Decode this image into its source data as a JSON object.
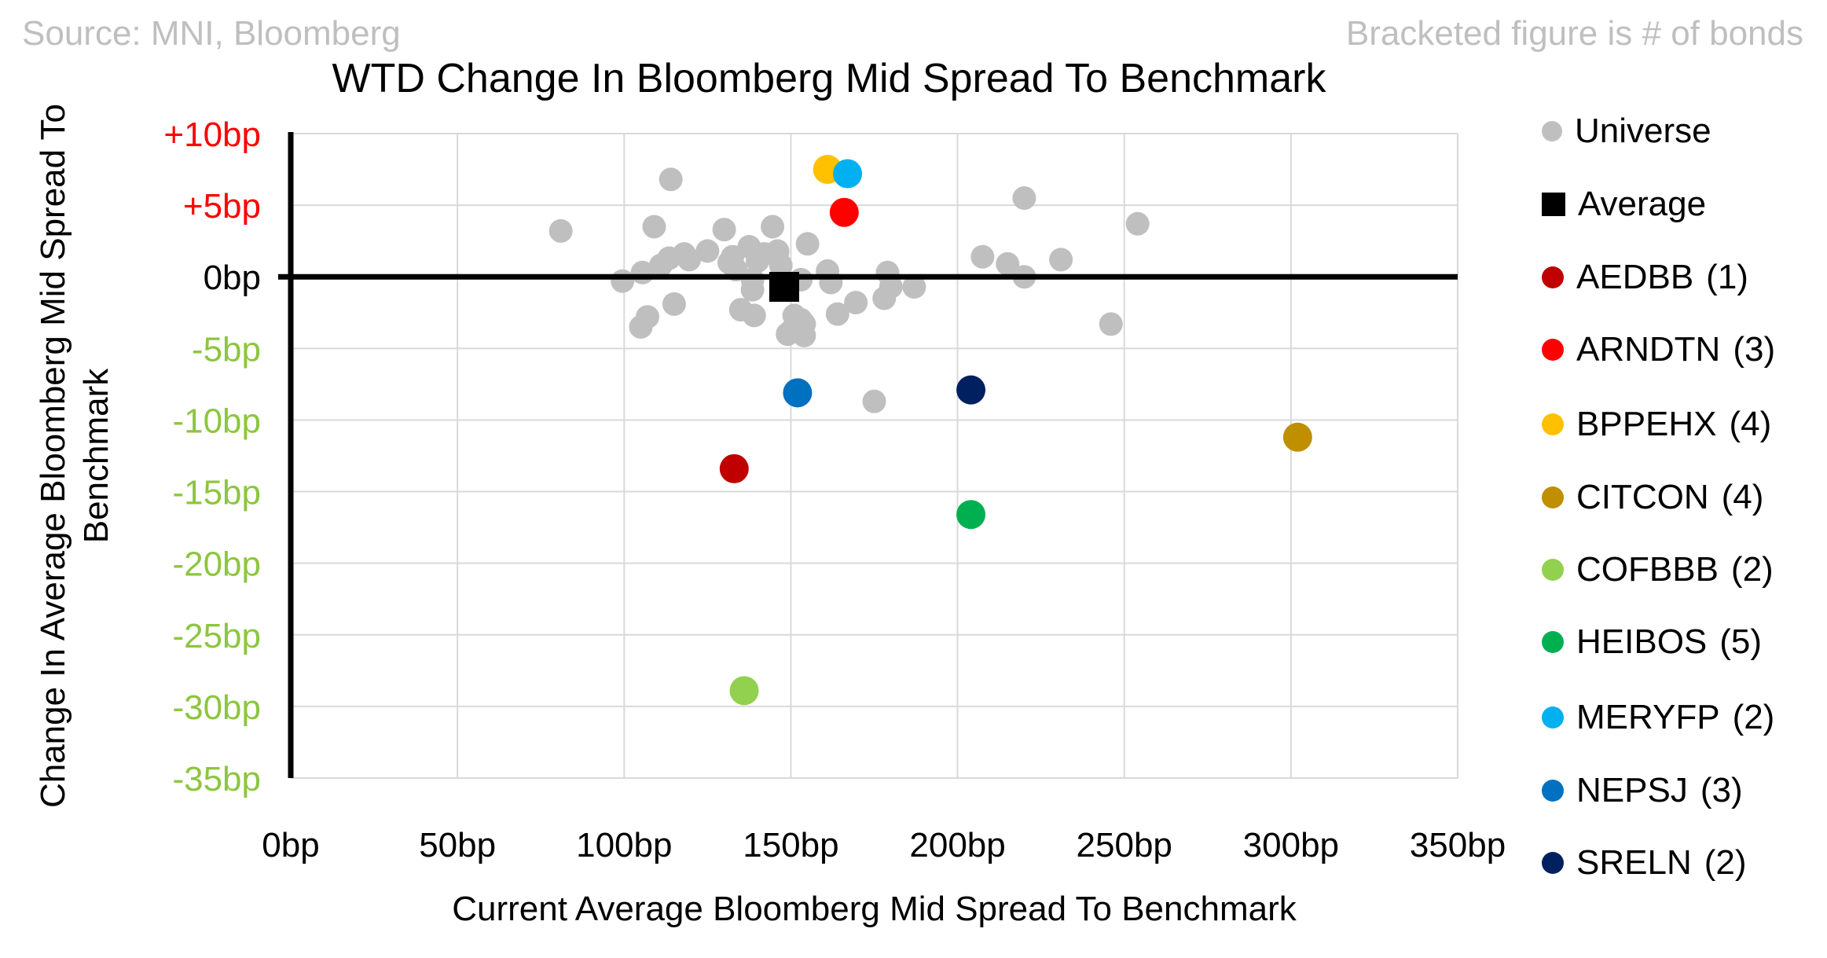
{
  "header": {
    "source": "Source: MNI, Bloomberg",
    "note": "Bracketed figure is # of bonds"
  },
  "chart_data": {
    "type": "scatter",
    "title": "WTD Change In Bloomberg Mid Spread To Benchmark",
    "xlabel": "Current Average Bloomberg Mid Spread To Benchmark",
    "ylabel_line1": "Change In Average Bloomberg Mid Spread To",
    "ylabel_line2": "Benchmark",
    "unit": "bp",
    "grid": true,
    "gridline_color": "#D9D9D9",
    "zero_line_color": "#000000",
    "x_axis": {
      "min": 0,
      "max": 350,
      "step": 50,
      "ticks": [
        {
          "value": 0,
          "label": "0bp"
        },
        {
          "value": 50,
          "label": "50bp"
        },
        {
          "value": 100,
          "label": "100bp"
        },
        {
          "value": 150,
          "label": "150bp"
        },
        {
          "value": 200,
          "label": "200bp"
        },
        {
          "value": 250,
          "label": "250bp"
        },
        {
          "value": 300,
          "label": "300bp"
        },
        {
          "value": 350,
          "label": "350bp"
        }
      ]
    },
    "y_axis": {
      "min": -35,
      "max": 10,
      "step": 5,
      "ticks": [
        {
          "value": 10,
          "label": "+10bp",
          "color": "#FF0000"
        },
        {
          "value": 5,
          "label": "+5bp",
          "color": "#FF0000"
        },
        {
          "value": 0,
          "label": "0bp",
          "color": "#000000"
        },
        {
          "value": -5,
          "label": "-5bp",
          "color": "#8CC63E"
        },
        {
          "value": -10,
          "label": "-10bp",
          "color": "#8CC63E"
        },
        {
          "value": -15,
          "label": "-15bp",
          "color": "#8CC63E"
        },
        {
          "value": -20,
          "label": "-20bp",
          "color": "#8CC63E"
        },
        {
          "value": -25,
          "label": "-25bp",
          "color": "#8CC63E"
        },
        {
          "value": -30,
          "label": "-30bp",
          "color": "#8CC63E"
        },
        {
          "value": -35,
          "label": "-35bp",
          "color": "#8CC63E"
        }
      ]
    },
    "series": [
      {
        "name": "Universe",
        "marker": "circle",
        "color": "#BFBFBF",
        "size": 30,
        "points": [
          [
            81,
            3.2
          ],
          [
            114,
            6.8
          ],
          [
            109,
            3.5
          ],
          [
            130,
            3.3
          ],
          [
            144.5,
            3.5
          ],
          [
            125,
            1.8
          ],
          [
            113.5,
            1.3
          ],
          [
            118,
            1.6
          ],
          [
            119.5,
            1.2
          ],
          [
            111,
            0.8
          ],
          [
            105.5,
            0.3
          ],
          [
            99.5,
            -0.3
          ],
          [
            132.5,
            1.4
          ],
          [
            131.5,
            1.0
          ],
          [
            133.5,
            0.5
          ],
          [
            137.5,
            2.1
          ],
          [
            140,
            1.1
          ],
          [
            142,
            1.6
          ],
          [
            146,
            1.8
          ],
          [
            147,
            0.8
          ],
          [
            138.5,
            -0.2
          ],
          [
            138.5,
            -0.9
          ],
          [
            115,
            -1.9
          ],
          [
            135,
            -2.3
          ],
          [
            139,
            -2.7
          ],
          [
            107,
            -2.8
          ],
          [
            105,
            -3.5
          ],
          [
            151,
            -2.7
          ],
          [
            150,
            -3.8
          ],
          [
            153,
            -0.2
          ],
          [
            155,
            2.3
          ],
          [
            146,
            1.7
          ],
          [
            161,
            0.4
          ],
          [
            162,
            -0.4
          ],
          [
            164,
            -2.6
          ],
          [
            169.5,
            -1.8
          ],
          [
            178,
            -1.5
          ],
          [
            180,
            -0.7
          ],
          [
            187,
            -0.7
          ],
          [
            179,
            0.3
          ],
          [
            153,
            -3.0
          ],
          [
            154,
            -3.3
          ],
          [
            154,
            -4.1
          ],
          [
            149,
            -4.0
          ],
          [
            175,
            -8.7
          ],
          [
            220,
            5.5
          ],
          [
            254,
            3.7
          ],
          [
            207.5,
            1.4
          ],
          [
            215,
            0.9
          ],
          [
            220,
            0.0
          ],
          [
            231,
            1.2
          ],
          [
            246,
            -3.3
          ]
        ]
      },
      {
        "name": "AEDBB",
        "count": "(1)",
        "marker": "circle",
        "color": "#C00000",
        "size": 37,
        "points": [
          [
            133,
            -13.4
          ]
        ]
      },
      {
        "name": "ARNDTN",
        "count": "(3)",
        "marker": "circle",
        "color": "#FF0000",
        "size": 37,
        "points": [
          [
            166,
            4.5
          ]
        ]
      },
      {
        "name": "BPPEHX",
        "count": "(4)",
        "marker": "circle",
        "color": "#FFC000",
        "size": 37,
        "points": [
          [
            161,
            7.5
          ]
        ]
      },
      {
        "name": "CITCON",
        "count": "(4)",
        "marker": "circle",
        "color": "#BF8F00",
        "size": 37,
        "points": [
          [
            302,
            -11.2
          ]
        ]
      },
      {
        "name": "COFBBB",
        "count": "(2)",
        "marker": "circle",
        "color": "#92D050",
        "size": 37,
        "points": [
          [
            136,
            -28.9
          ]
        ]
      },
      {
        "name": "HEIBOS",
        "count": "(5)",
        "marker": "circle",
        "color": "#00B050",
        "size": 37,
        "points": [
          [
            204,
            -16.6
          ]
        ]
      },
      {
        "name": "MERYFP",
        "count": "(2)",
        "marker": "circle",
        "color": "#00B0F0",
        "size": 37,
        "points": [
          [
            167,
            7.2
          ]
        ]
      },
      {
        "name": "NEPSJ",
        "count": "(3)",
        "marker": "circle",
        "color": "#0070C0",
        "size": 37,
        "points": [
          [
            152,
            -8.1
          ]
        ]
      },
      {
        "name": "SRELN",
        "count": "(2)",
        "marker": "circle",
        "color": "#002060",
        "size": 37,
        "points": [
          [
            204,
            -7.9
          ]
        ]
      },
      {
        "name": "Average",
        "marker": "square",
        "color": "#000000",
        "size": 38,
        "points": [
          [
            148,
            -0.7
          ]
        ]
      }
    ],
    "legend": {
      "position": "right",
      "items": [
        {
          "name": "Universe",
          "count": "",
          "marker": "circle",
          "color": "#BFBFBF",
          "size": 26
        },
        {
          "name": "Average",
          "count": "",
          "marker": "square",
          "color": "#000000",
          "size": 30
        },
        {
          "name": "AEDBB",
          "count": "(1)",
          "marker": "circle",
          "color": "#C00000",
          "size": 28
        },
        {
          "name": "ARNDTN",
          "count": "(3)",
          "marker": "circle",
          "color": "#FF0000",
          "size": 28
        },
        {
          "name": "BPPEHX",
          "count": "(4)",
          "marker": "circle",
          "color": "#FFC000",
          "size": 28
        },
        {
          "name": "CITCON",
          "count": "(4)",
          "marker": "circle",
          "color": "#BF8F00",
          "size": 28
        },
        {
          "name": "COFBBB",
          "count": "(2)",
          "marker": "circle",
          "color": "#92D050",
          "size": 28
        },
        {
          "name": "HEIBOS",
          "count": "(5)",
          "marker": "circle",
          "color": "#00B050",
          "size": 28
        },
        {
          "name": "MERYFP",
          "count": "(2)",
          "marker": "circle",
          "color": "#00B0F0",
          "size": 28
        },
        {
          "name": "NEPSJ",
          "count": "(3)",
          "marker": "circle",
          "color": "#0070C0",
          "size": 28
        },
        {
          "name": "SRELN",
          "count": "(2)",
          "marker": "circle",
          "color": "#002060",
          "size": 28
        }
      ]
    }
  }
}
